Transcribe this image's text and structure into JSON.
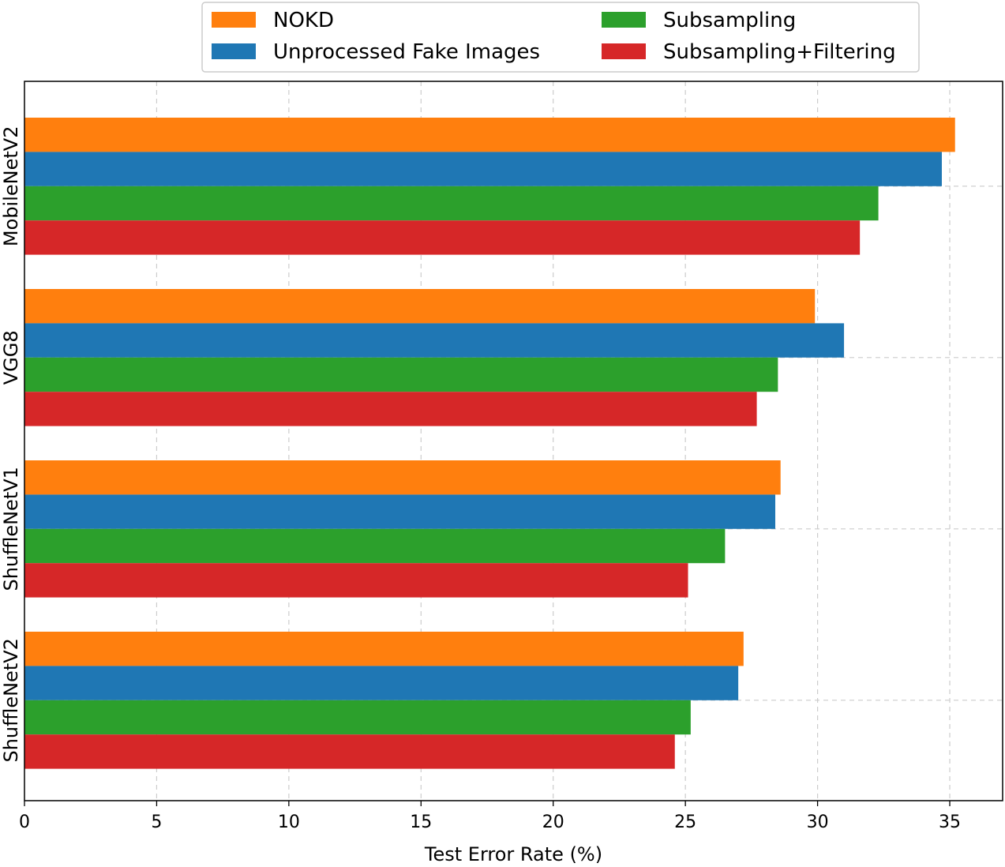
{
  "chart_data": {
    "type": "bar",
    "orientation": "horizontal",
    "categories": [
      "MobileNetV2",
      "VGG8",
      "ShuffleNetV1",
      "ShuffleNetV2"
    ],
    "series": [
      {
        "name": "NOKD",
        "color": "#ff7f0e",
        "values": [
          35.2,
          29.9,
          28.6,
          27.2
        ]
      },
      {
        "name": "Unprocessed Fake Images",
        "color": "#1f77b4",
        "values": [
          34.7,
          31.0,
          28.4,
          27.0
        ]
      },
      {
        "name": "Subsampling",
        "color": "#2ca02c",
        "values": [
          32.3,
          28.5,
          26.5,
          25.2
        ]
      },
      {
        "name": "Subsampling+Filtering",
        "color": "#d62728",
        "values": [
          31.6,
          27.7,
          25.1,
          24.6
        ]
      }
    ],
    "xlabel": "Test Error Rate (%)",
    "ylabel": "",
    "xlim": [
      0,
      37
    ],
    "xticks": [
      0,
      5,
      10,
      15,
      20,
      25,
      30,
      35
    ],
    "grid": true,
    "grid_style": "dashed",
    "legend_position": "top-center",
    "legend_columns": 2
  }
}
